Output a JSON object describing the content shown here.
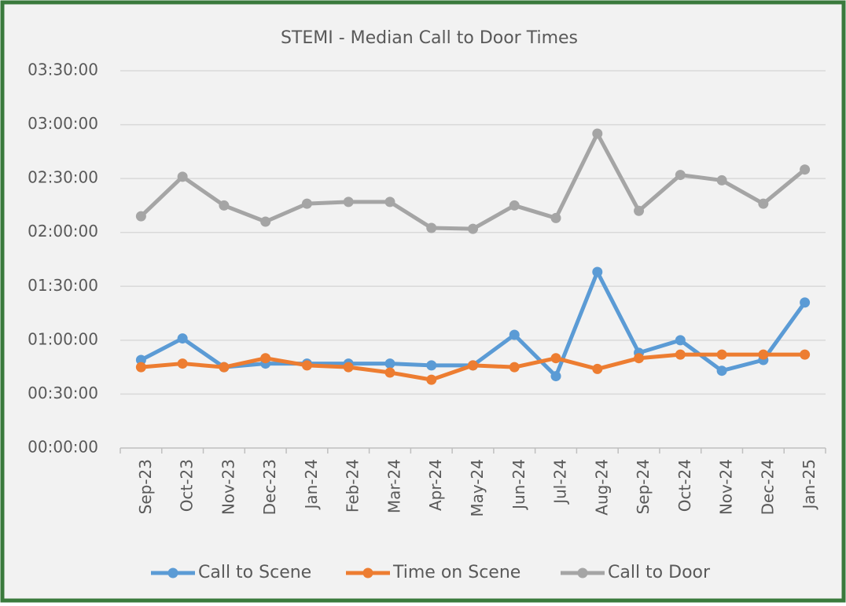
{
  "chart_data": {
    "type": "line",
    "title": "STEMI - Median Call to Door Times",
    "categories": [
      "Sep-23",
      "Oct-23",
      "Nov-23",
      "Dec-23",
      "Jan-24",
      "Feb-24",
      "Mar-24",
      "Apr-24",
      "May-24",
      "Jun-24",
      "Jul-24",
      "Aug-24",
      "Sep-24",
      "Oct-24",
      "Nov-24",
      "Dec-24",
      "Jan-25"
    ],
    "series": [
      {
        "name": "Call to Scene",
        "color": "#5b9bd5",
        "values": [
          49,
          61,
          45,
          47,
          47,
          47,
          47,
          46,
          46,
          63,
          40,
          98,
          53,
          60,
          43,
          49,
          81
        ]
      },
      {
        "name": "Time on Scene",
        "color": "#ed7d31",
        "values": [
          45,
          47,
          45,
          50,
          46,
          45,
          42,
          38,
          46,
          45,
          50,
          44,
          50,
          52,
          52,
          52,
          52
        ]
      },
      {
        "name": "Call to Door",
        "color": "#a5a5a5",
        "values": [
          129,
          151,
          135,
          126,
          136,
          137,
          137,
          122.5,
          122,
          135,
          128,
          175,
          132,
          152,
          149,
          136,
          155
        ]
      }
    ],
    "ylim": [
      0,
      210
    ],
    "yticks": [
      {
        "value": 0,
        "label": "00:00:00"
      },
      {
        "value": 30,
        "label": "00:30:00"
      },
      {
        "value": 60,
        "label": "01:00:00"
      },
      {
        "value": 90,
        "label": "01:30:00"
      },
      {
        "value": 120,
        "label": "02:00:00"
      },
      {
        "value": 150,
        "label": "02:30:00"
      },
      {
        "value": 180,
        "label": "03:00:00"
      },
      {
        "value": 210,
        "label": "03:30:00"
      }
    ],
    "grid": true,
    "legend": "bottom"
  }
}
